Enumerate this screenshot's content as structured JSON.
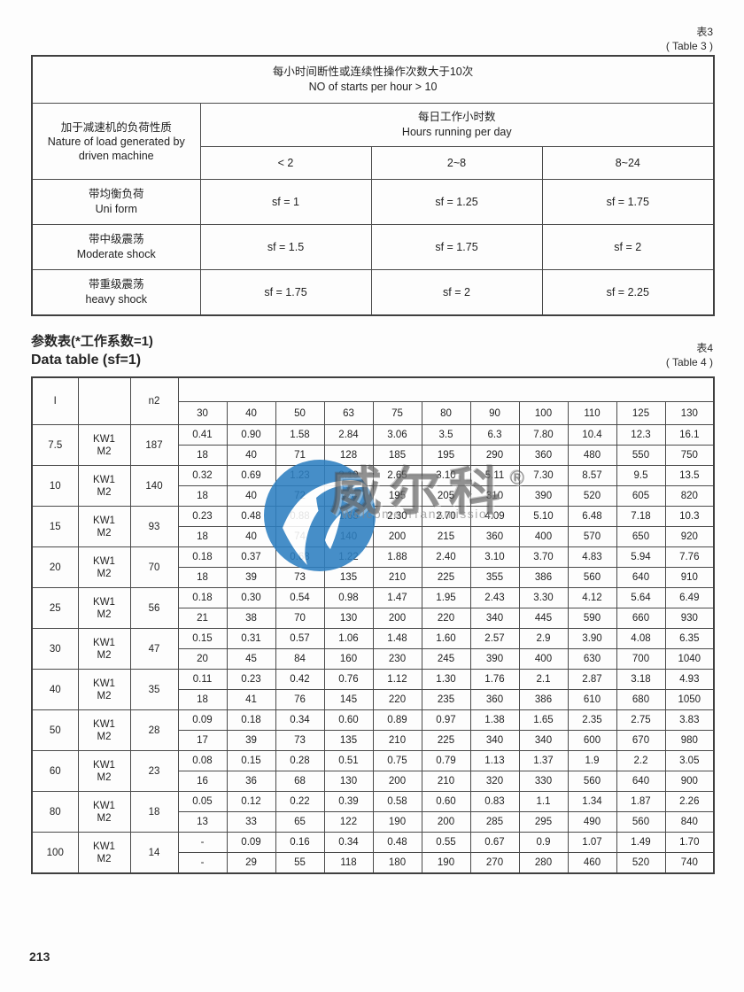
{
  "page": {
    "page_number": "213"
  },
  "table3": {
    "tag_cn": "表3",
    "tag_en": "( Table 3 )",
    "header_main_cn": "每小时间断性或连续性操作次数大于10次",
    "header_main_en": "NO of starts per hour  > 10",
    "left_header_cn": "加于减速机的负荷性质",
    "left_header_en1": "Nature of load generated by",
    "left_header_en2": "driven machine",
    "hours_header_cn": "每日工作小时数",
    "hours_header_en": "Hours running per day",
    "col_headers": [
      "< 2",
      "2~8",
      "8~24"
    ],
    "rows": [
      {
        "label_cn": "带均衡负荷",
        "label_en": "Uni form",
        "values": [
          "sf = 1",
          "sf = 1.25",
          "sf = 1.75"
        ]
      },
      {
        "label_cn": "带中级震荡",
        "label_en": "Moderate shock",
        "values": [
          "sf = 1.5",
          "sf = 1.75",
          "sf = 2"
        ]
      },
      {
        "label_cn": "带重级震荡",
        "label_en": "heavy shock",
        "values": [
          "sf = 1.75",
          "sf = 2",
          "sf = 2.25"
        ]
      }
    ]
  },
  "table4": {
    "title_cn": "参数表(*工作系数=1)",
    "title_en": "Data table (sf=1)",
    "tag_cn": "表4",
    "tag_en": "( Table 4 )",
    "col1_header": "I",
    "col2_header": "",
    "col3_header": "n2",
    "row_sub_labels": [
      "KW1",
      "M2"
    ],
    "size_headers": [
      "30",
      "40",
      "50",
      "63",
      "75",
      "80",
      "90",
      "100",
      "110",
      "125",
      "130"
    ],
    "groups": [
      {
        "i": "7.5",
        "n2": "187",
        "kw1": [
          "0.41",
          "0.90",
          "1.58",
          "2.84",
          "3.06",
          "3.5",
          "6.3",
          "7.80",
          "10.4",
          "12.3",
          "16.1"
        ],
        "m2": [
          "18",
          "40",
          "71",
          "128",
          "185",
          "195",
          "290",
          "360",
          "480",
          "550",
          "750"
        ]
      },
      {
        "i": "10",
        "n2": "140",
        "kw1": [
          "0.32",
          "0.69",
          "1.23",
          "2.19",
          "2.65",
          "3.10",
          "5.11",
          "7.30",
          "8.57",
          "9.5",
          "13.5"
        ],
        "m2": [
          "18",
          "40",
          "72",
          "130",
          "195",
          "205",
          "310",
          "390",
          "520",
          "605",
          "820"
        ]
      },
      {
        "i": "15",
        "n2": "93",
        "kw1": [
          "0.23",
          "0.48",
          "0.88",
          "1.65",
          "2.30",
          "2.70",
          "4.09",
          "5.10",
          "6.48",
          "7.18",
          "10.3"
        ],
        "m2": [
          "18",
          "40",
          "74",
          "140",
          "200",
          "215",
          "360",
          "400",
          "570",
          "650",
          "920"
        ]
      },
      {
        "i": "20",
        "n2": "70",
        "kw1": [
          "0.18",
          "0.37",
          "0.68",
          "1.22",
          "1.88",
          "2.40",
          "3.10",
          "3.70",
          "4.83",
          "5.94",
          "7.76"
        ],
        "m2": [
          "18",
          "39",
          "73",
          "135",
          "210",
          "225",
          "355",
          "386",
          "560",
          "640",
          "910"
        ]
      },
      {
        "i": "25",
        "n2": "56",
        "kw1": [
          "0.18",
          "0.30",
          "0.54",
          "0.98",
          "1.47",
          "1.95",
          "2.43",
          "3.30",
          "4.12",
          "5.64",
          "6.49"
        ],
        "m2": [
          "21",
          "38",
          "70",
          "130",
          "200",
          "220",
          "340",
          "445",
          "590",
          "660",
          "930"
        ]
      },
      {
        "i": "30",
        "n2": "47",
        "kw1": [
          "0.15",
          "0.31",
          "0.57",
          "1.06",
          "1.48",
          "1.60",
          "2.57",
          "2.9",
          "3.90",
          "4.08",
          "6.35"
        ],
        "m2": [
          "20",
          "45",
          "84",
          "160",
          "230",
          "245",
          "390",
          "400",
          "630",
          "700",
          "1040"
        ]
      },
      {
        "i": "40",
        "n2": "35",
        "kw1": [
          "0.11",
          "0.23",
          "0.42",
          "0.76",
          "1.12",
          "1.30",
          "1.76",
          "2.1",
          "2.87",
          "3.18",
          "4.93"
        ],
        "m2": [
          "18",
          "41",
          "76",
          "145",
          "220",
          "235",
          "360",
          "386",
          "610",
          "680",
          "1050"
        ]
      },
      {
        "i": "50",
        "n2": "28",
        "kw1": [
          "0.09",
          "0.18",
          "0.34",
          "0.60",
          "0.89",
          "0.97",
          "1.38",
          "1.65",
          "2.35",
          "2.75",
          "3.83"
        ],
        "m2": [
          "17",
          "39",
          "73",
          "135",
          "210",
          "225",
          "340",
          "340",
          "600",
          "670",
          "980"
        ]
      },
      {
        "i": "60",
        "n2": "23",
        "kw1": [
          "0.08",
          "0.15",
          "0.28",
          "0.51",
          "0.75",
          "0.79",
          "1.13",
          "1.37",
          "1.9",
          "2.2",
          "3.05"
        ],
        "m2": [
          "16",
          "36",
          "68",
          "130",
          "200",
          "210",
          "320",
          "330",
          "560",
          "640",
          "900"
        ]
      },
      {
        "i": "80",
        "n2": "18",
        "kw1": [
          "0.05",
          "0.12",
          "0.22",
          "0.39",
          "0.58",
          "0.60",
          "0.83",
          "1.1",
          "1.34",
          "1.87",
          "2.26"
        ],
        "m2": [
          "13",
          "33",
          "65",
          "122",
          "190",
          "200",
          "285",
          "295",
          "490",
          "560",
          "840"
        ]
      },
      {
        "i": "100",
        "n2": "14",
        "kw1": [
          "-",
          "0.09",
          "0.16",
          "0.34",
          "0.48",
          "0.55",
          "0.67",
          "0.9",
          "1.07",
          "1.49",
          "1.70"
        ],
        "m2": [
          "-",
          "29",
          "55",
          "118",
          "180",
          "190",
          "270",
          "280",
          "460",
          "520",
          "740"
        ]
      }
    ]
  },
  "watermark": {
    "brand_cn": "威尔科",
    "registered": "®",
    "brand_en": "Welcome Transmission",
    "logo_color": "#2d7fc1"
  }
}
